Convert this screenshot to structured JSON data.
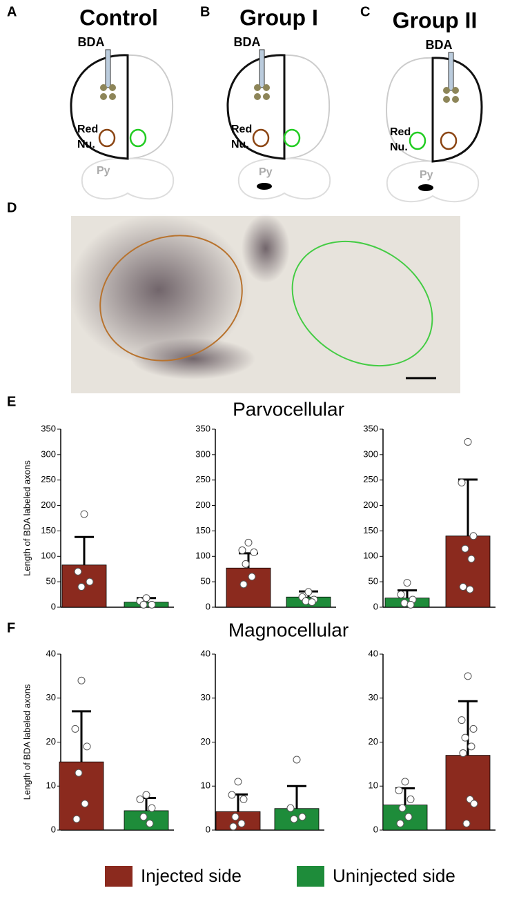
{
  "diagrams": [
    {
      "letter": "A",
      "title": "Control",
      "injection": "BDA",
      "nucleus": [
        "Red",
        "Nu."
      ],
      "pyramid": "Py"
    },
    {
      "letter": "B",
      "title": "Group I",
      "injection": "BDA",
      "nucleus": [
        "Red",
        "Nu."
      ],
      "pyramid": "Py"
    },
    {
      "letter": "C",
      "title": "Group II",
      "injection": "BDA",
      "nucleus": [
        "Red",
        "Nu."
      ],
      "pyramid": "Py"
    }
  ],
  "photo": {
    "letter": "D"
  },
  "sections": [
    {
      "letter": "E",
      "title": "Parvocellular"
    },
    {
      "letter": "F",
      "title": "Magnocellular"
    }
  ],
  "legend": [
    {
      "name": "Injected side",
      "color": "#8b2a1e"
    },
    {
      "name": "Uninjected side",
      "color": "#1e8c3a"
    }
  ],
  "chart_data": [
    {
      "type": "bar",
      "ylabel": "Length of BDA labeled axons",
      "ylim": [
        0,
        350
      ],
      "yticks": [
        0,
        50,
        100,
        150,
        200,
        250,
        300,
        350
      ],
      "values": [
        83,
        10
      ],
      "errors": [
        55,
        8
      ],
      "colors": [
        "#8b2a1e",
        "#1e8c3a"
      ],
      "points": [
        [
          183,
          70,
          50,
          40
        ],
        [
          18,
          12,
          5,
          5
        ]
      ]
    },
    {
      "type": "bar",
      "ylim": [
        0,
        350
      ],
      "yticks": [
        0,
        50,
        100,
        150,
        200,
        250,
        300,
        350
      ],
      "values": [
        77,
        20
      ],
      "errors": [
        29,
        11
      ],
      "colors": [
        "#8b2a1e",
        "#1e8c3a"
      ],
      "points": [
        [
          127,
          112,
          108,
          85,
          60,
          45
        ],
        [
          30,
          20,
          15,
          12,
          10
        ]
      ]
    },
    {
      "type": "bar",
      "ylim": [
        0,
        350
      ],
      "yticks": [
        0,
        50,
        100,
        150,
        200,
        250,
        300,
        350
      ],
      "values": [
        18,
        140
      ],
      "errors": [
        15,
        111
      ],
      "colors": [
        "#1e8c3a",
        "#8b2a1e"
      ],
      "points": [
        [
          48,
          25,
          15,
          8,
          5
        ],
        [
          325,
          245,
          140,
          115,
          95,
          40,
          35
        ]
      ]
    },
    {
      "type": "bar",
      "ylabel": "Length of BDA labeled axons",
      "ylim": [
        0,
        40
      ],
      "yticks": [
        0,
        10,
        20,
        30,
        40
      ],
      "values": [
        15.5,
        4.4
      ],
      "errors": [
        11.5,
        2.9
      ],
      "colors": [
        "#8b2a1e",
        "#1e8c3a"
      ],
      "points": [
        [
          34,
          23,
          19,
          13,
          6,
          2.5
        ],
        [
          8,
          7,
          5,
          3,
          1.5
        ]
      ]
    },
    {
      "type": "bar",
      "ylim": [
        0,
        40
      ],
      "yticks": [
        0,
        10,
        20,
        30,
        40
      ],
      "values": [
        4.2,
        4.9
      ],
      "errors": [
        3.9,
        5.1
      ],
      "colors": [
        "#8b2a1e",
        "#1e8c3a"
      ],
      "points": [
        [
          11,
          8,
          7,
          3,
          1.5,
          0.8
        ],
        [
          16,
          5,
          3,
          2.5
        ]
      ]
    },
    {
      "type": "bar",
      "ylim": [
        0,
        40
      ],
      "yticks": [
        0,
        10,
        20,
        30,
        40
      ],
      "values": [
        5.7,
        17
      ],
      "errors": [
        3.8,
        12.3
      ],
      "colors": [
        "#1e8c3a",
        "#8b2a1e"
      ],
      "points": [
        [
          11,
          9,
          7,
          5,
          3,
          1.5
        ],
        [
          35,
          25,
          23,
          21,
          19,
          17.5,
          7,
          6,
          1.5
        ]
      ]
    }
  ]
}
